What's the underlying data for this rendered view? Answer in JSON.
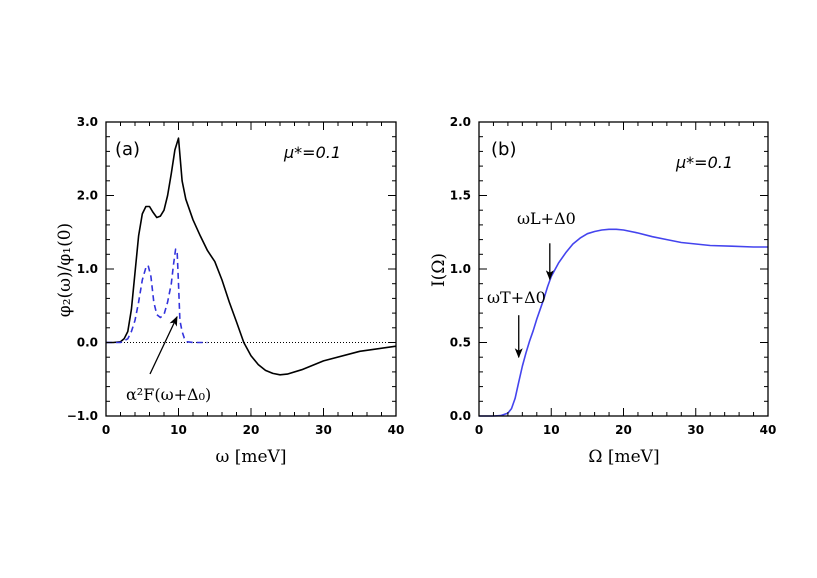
{
  "chart_data": [
    {
      "type": "line",
      "panel": "(a)",
      "xlabel": "ω [meV]",
      "ylabel": "φ₂(ω)/φ₁(0)",
      "xlim": [
        0,
        40
      ],
      "ylim": [
        -1.0,
        3.0
      ],
      "xticks": [
        "0",
        "10",
        "20",
        "30",
        "40"
      ],
      "yticks": [
        "−1.0",
        "0.0",
        "1.0",
        "2.0",
        "3.0"
      ],
      "xtick_values": [
        0,
        10,
        20,
        30,
        40
      ],
      "ytick_values": [
        -1.0,
        0.0,
        1.0,
        2.0,
        3.0
      ],
      "annotation_mu": "μ*=0.1",
      "annotation_arrow": "α²F(ω+Δ₀)",
      "arrow_target": [
        9.8,
        0.35
      ],
      "zero_line": true,
      "series": [
        {
          "name": "phi2_over_phi1",
          "style": "solid",
          "color": "#000000",
          "x": [
            0,
            1,
            2,
            2.5,
            3,
            3.5,
            4,
            4.5,
            5,
            5.5,
            6,
            6.5,
            7,
            7.5,
            8,
            8.5,
            9,
            9.5,
            10,
            10.5,
            11,
            12,
            13,
            14,
            15,
            16,
            17,
            18,
            19,
            20,
            21,
            22,
            23,
            24,
            25,
            27,
            30,
            35,
            40
          ],
          "y": [
            0,
            0,
            0.01,
            0.05,
            0.15,
            0.45,
            0.95,
            1.45,
            1.75,
            1.85,
            1.85,
            1.77,
            1.7,
            1.72,
            1.8,
            2.0,
            2.3,
            2.62,
            2.78,
            2.2,
            1.95,
            1.67,
            1.45,
            1.25,
            1.1,
            0.85,
            0.55,
            0.28,
            0.0,
            -0.18,
            -0.3,
            -0.38,
            -0.42,
            -0.44,
            -0.43,
            -0.37,
            -0.25,
            -0.12,
            -0.05
          ]
        },
        {
          "name": "a2F(w+D0)",
          "style": "dashed",
          "color": "#3333dd",
          "x": [
            0,
            2,
            3,
            3.5,
            4,
            4.5,
            5,
            5.5,
            5.8,
            6.2,
            6.6,
            7,
            7.5,
            8,
            8.5,
            9,
            9.3,
            9.6,
            9.8,
            10.0,
            10.2,
            10.5,
            10.8,
            11.2,
            12,
            14
          ],
          "y": [
            0,
            0,
            0.05,
            0.15,
            0.3,
            0.55,
            0.85,
            1.02,
            1.05,
            0.9,
            0.55,
            0.38,
            0.34,
            0.38,
            0.55,
            0.8,
            1.05,
            1.27,
            1.25,
            0.8,
            0.3,
            0.15,
            0.06,
            0.01,
            0,
            0
          ]
        }
      ]
    },
    {
      "type": "line",
      "panel": "(b)",
      "xlabel": "Ω [meV]",
      "ylabel": "I(Ω)",
      "xlim": [
        0,
        40
      ],
      "ylim": [
        0.0,
        2.0
      ],
      "xticks": [
        "0",
        "10",
        "20",
        "30",
        "40"
      ],
      "yticks": [
        "0.0",
        "0.5",
        "1.0",
        "1.5",
        "2.0"
      ],
      "xtick_values": [
        0,
        10,
        20,
        30,
        40
      ],
      "ytick_values": [
        0.0,
        0.5,
        1.0,
        1.5,
        2.0
      ],
      "annotation_mu": "μ*=0.1",
      "annotation_L": "ωL+Δ0",
      "annotation_T": "ωT+Δ0",
      "arrow_L_target": [
        9.8,
        0.93
      ],
      "arrow_T_target": [
        5.5,
        0.4
      ],
      "series": [
        {
          "name": "I(Omega)",
          "style": "solid",
          "color": "#4444ee",
          "x": [
            0,
            2,
            3,
            4,
            4.5,
            5,
            5.5,
            6,
            6.5,
            7,
            7.5,
            8,
            8.5,
            9,
            9.5,
            10,
            11,
            12,
            13,
            14,
            15,
            16,
            17,
            18,
            19,
            20,
            22,
            24,
            26,
            28,
            30,
            32,
            35,
            38,
            40
          ],
          "y": [
            0,
            0,
            0.003,
            0.02,
            0.05,
            0.12,
            0.23,
            0.34,
            0.43,
            0.51,
            0.58,
            0.66,
            0.73,
            0.8,
            0.88,
            0.95,
            1.04,
            1.11,
            1.17,
            1.21,
            1.24,
            1.255,
            1.265,
            1.27,
            1.27,
            1.265,
            1.245,
            1.22,
            1.2,
            1.18,
            1.17,
            1.16,
            1.155,
            1.15,
            1.15
          ]
        }
      ]
    }
  ]
}
